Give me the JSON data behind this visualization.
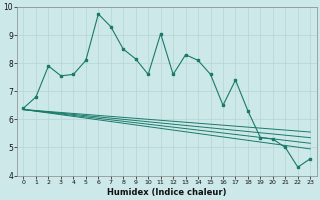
{
  "xlabel": "Humidex (Indice chaleur)",
  "background_color": "#cce8e8",
  "grid_color": "#b8d8d8",
  "line_color": "#1a7a6a",
  "xlim": [
    -0.5,
    23.5
  ],
  "ylim": [
    4,
    10
  ],
  "yticks": [
    4,
    5,
    6,
    7,
    8,
    9,
    10
  ],
  "xticks": [
    0,
    1,
    2,
    3,
    4,
    5,
    6,
    7,
    8,
    9,
    10,
    11,
    12,
    13,
    14,
    15,
    16,
    17,
    18,
    19,
    20,
    21,
    22,
    23
  ],
  "main_x": [
    0,
    1,
    2,
    3,
    4,
    5,
    6,
    7,
    8,
    9,
    10,
    11,
    12,
    13,
    14,
    15,
    16,
    17,
    18,
    19,
    20,
    21,
    22,
    23
  ],
  "main_y": [
    6.4,
    6.8,
    7.9,
    7.55,
    7.6,
    8.1,
    9.75,
    9.3,
    8.5,
    8.15,
    7.6,
    9.05,
    7.6,
    8.3,
    8.1,
    7.6,
    6.5,
    7.4,
    6.3,
    5.35,
    5.3,
    5.0,
    4.3,
    4.6
  ],
  "trend_lines": [
    {
      "x0": 0,
      "y0": 6.35,
      "x1": 23,
      "y1": 5.55
    },
    {
      "x0": 0,
      "y0": 6.35,
      "x1": 23,
      "y1": 5.35
    },
    {
      "x0": 0,
      "y0": 6.35,
      "x1": 23,
      "y1": 5.15
    },
    {
      "x0": 0,
      "y0": 6.35,
      "x1": 23,
      "y1": 4.95
    }
  ]
}
